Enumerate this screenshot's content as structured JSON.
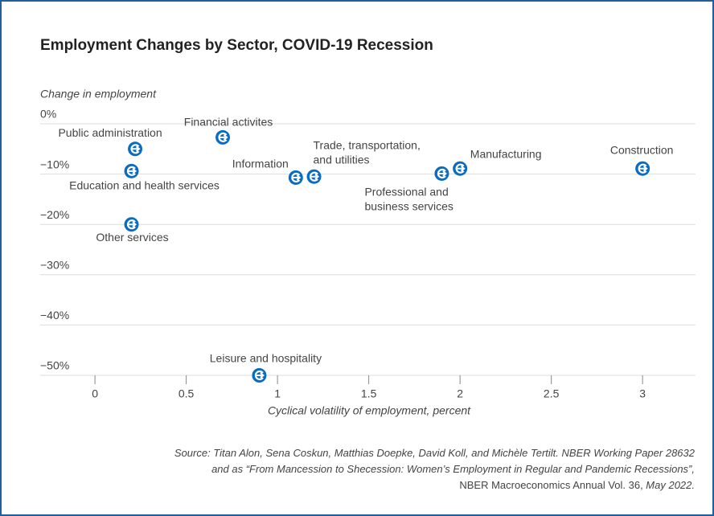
{
  "chart_data": {
    "type": "scatter",
    "title": "Employment Changes by Sector, COVID-19 Recession",
    "ylabel": "Change in employment",
    "xlabel": "Cyclical volatility of employment, percent",
    "labels": [
      [
        "Public administration"
      ],
      [
        "Financial activites"
      ],
      [
        "Education and health services"
      ],
      [
        "Other services"
      ],
      [
        "Information"
      ],
      [
        "Trade, transportation,",
        "and utilities"
      ],
      [
        "Professional and",
        "business services"
      ],
      [
        "Manufacturing"
      ],
      [
        "Construction"
      ],
      [
        "Leisure and hospitality"
      ]
    ],
    "x": [
      0.22,
      0.7,
      0.2,
      0.2,
      1.1,
      1.2,
      1.9,
      2.0,
      3.0,
      0.9
    ],
    "y": [
      -5,
      -2.7,
      -9.4,
      -20,
      -10.7,
      -10.5,
      -9.9,
      -8.9,
      -8.9,
      -50
    ],
    "color": "#0a6cc0",
    "xlim": [
      -0.3,
      3.29
    ],
    "ylim": [
      -50,
      2
    ],
    "xticks": [
      0,
      0.5,
      1,
      1.5,
      2,
      2.5,
      3
    ],
    "yticks": [
      {
        "value": 0,
        "label": "0%"
      },
      {
        "value": -10,
        "label": "−10%"
      },
      {
        "value": -20,
        "label": "−20%"
      },
      {
        "value": -30,
        "label": "−30%"
      },
      {
        "value": -40,
        "label": "−40%"
      },
      {
        "value": -50,
        "label": "−50%"
      }
    ],
    "grid": true,
    "source": [
      [
        {
          "text": "Source: Titan Alon, Sena Coskun, Matthias Doepke, David Koll, and Michèle Tertilt. NBER Working Paper 28632",
          "italic": true
        }
      ],
      [
        {
          "text": "and as “From Mancession to Shecession: Women’s Employment in Regular and Pandemic Recessions”,",
          "italic": true
        }
      ],
      [
        {
          "text": "NBER Macroeconomics Annual Vol. 36, ",
          "italic": false
        },
        {
          "text": "May 2022.",
          "italic": true
        }
      ]
    ]
  }
}
